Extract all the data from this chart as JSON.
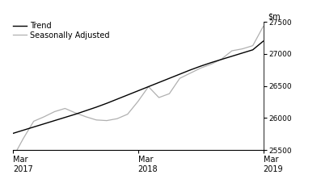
{
  "ylim": [
    25500,
    27500
  ],
  "yticks": [
    25500,
    26000,
    26500,
    27000,
    27500
  ],
  "xtick_positions": [
    0,
    12,
    24
  ],
  "xtick_labels": [
    "Mar\n2017",
    "Mar\n2018",
    "Mar\n2019"
  ],
  "trend_color": "#000000",
  "seasonal_color": "#b0b0b0",
  "trend_label": "Trend",
  "seasonal_label": "Seasonally Adjusted",
  "trend_values": [
    25760,
    25810,
    25860,
    25910,
    25960,
    26010,
    26060,
    26115,
    26170,
    26230,
    26295,
    26360,
    26425,
    26490,
    26555,
    26620,
    26685,
    26750,
    26810,
    26865,
    26915,
    26965,
    27015,
    27065,
    27200
  ],
  "seasonal_values": [
    25380,
    25680,
    25950,
    26020,
    26100,
    26150,
    26080,
    26020,
    25970,
    25960,
    25990,
    26060,
    26260,
    26490,
    26320,
    26380,
    26620,
    26700,
    26780,
    26840,
    26920,
    27050,
    27080,
    27130,
    27430
  ]
}
